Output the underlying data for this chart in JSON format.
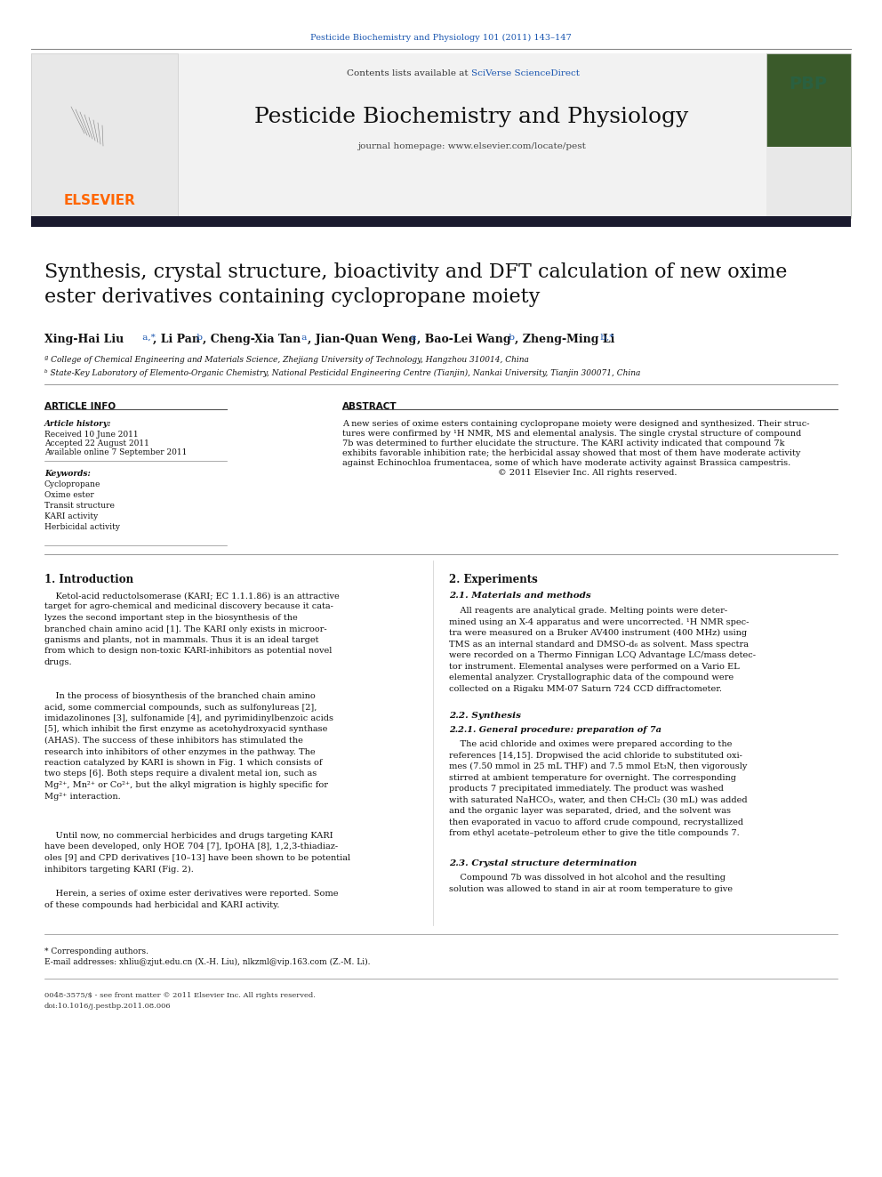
{
  "journal_header": "Pesticide Biochemistry and Physiology 101 (2011) 143–147",
  "journal_name": "Pesticide Biochemistry and Physiology",
  "journal_homepage": "journal homepage: www.elsevier.com/locate/pest",
  "contents_line": "Contents lists available at SciVerse ScienceDirect",
  "title": "Synthesis, crystal structure, bioactivity and DFT calculation of new oxime\nester derivatives containing cyclopropane moiety",
  "authors": "Xing-Hai Liu a,*, Li Pan b, Cheng-Xia Tan a, Jian-Quan Weng a, Bao-Lei Wang b, Zheng-Ming Li b,*",
  "affiliation_a": " a College of Chemical Engineering and Materials Science, Zhejiang University of Technology, Hangzhou 310014, China",
  "affiliation_b": " b State-Key Laboratory of Elemento-Organic Chemistry, National Pesticidal Engineering Centre (Tianjin), Nankai University, Tianjin 300071, China",
  "article_info_header": "ARTICLE INFO",
  "article_history_header": "Article history:",
  "received": "Received 10 June 2011",
  "accepted": "Accepted 22 August 2011",
  "available": "Available online 7 September 2011",
  "keywords_header": "Keywords:",
  "keywords": [
    "Cyclopropane",
    "Oxime ester",
    "Transit structure",
    "KARI activity",
    "Herbicidal activity"
  ],
  "abstract_header": "ABSTRACT",
  "abstract_text": "A new series of oxime esters containing cyclopropane moiety were designed and synthesized. Their structures were confirmed by ¹H NMR, MS and elemental analysis. The single crystal structure of compound 7b was determined to further elucidate the structure. The KARI activity indicated that compound 7k exhibits favorable inhibition rate; the herbicidal assay showed that most of them have moderate activity against Echinochloa frumentacea, some of which have moderate activity against Brassica campestris.\n© 2011 Elsevier Inc. All rights reserved.",
  "section1_header": "1. Introduction",
  "section1_para1": "Ketol-acid reductolsomerase (KARI; EC 1.1.1.86) is an attractive target for agro-chemical and medicinal discovery because it catalyzes the second important step in the biosynthesis of the branched chain amino acid [1]. The KARI only exists in microorganisms and plants, not in mammals. Thus it is an ideal target from which to design non-toxic KARI-inhibitors as potential novel drugs.",
  "section1_para2": "In the process of biosynthesis of the branched chain amino acid, some commercial compounds, such as sulfonylureas [2], imidazolinones [3], sulfonamide [4], and pyrimidinylbenzoic acids [5], which inhibit the first enzyme as acetohydroxyacid synthase (AHAS). The success of these inhibitors has stimulated the research into inhibitors of other enzymes in the pathway. The reaction catalyzed by KARI is shown in Fig. 1 which consists of two steps [6]. Both steps require a divalent metal ion, such as Mg²⁺, Mn²⁺ or Co²⁺, but the alkyl migration is highly specific for Mg²⁺ interaction.",
  "section1_para3": "Until now, no commercial herbicides and drugs targeting KARI have been developed, only HOE 704 [7], IpOHA [8], 1,2,3-thiadiazoles [9] and CPD derivatives [10–13] have been shown to be potential inhibitors targeting KARI (Fig. 2).",
  "section1_para4": "Herein, a series of oxime ester derivatives were reported. Some of these compounds had herbicidal and KARI activity.",
  "section2_header": "2. Experiments",
  "section2_1_header": "2.1. Materials and methods",
  "section2_1_text": "All reagents are analytical grade. Melting points were determined using an X-4 apparatus and were uncorrected. ¹H NMR spectra were measured on a Bruker AV400 instrument (400 MHz) using TMS as an internal standard and DMSO-d₆ as solvent. Mass spectra were recorded on a Thermo Finnigan LCQ Advantage LC/mass detector instrument. Elemental analyses were performed on a Vario EL elemental analyzer. Crystallographic data of the compound were collected on a Rigaku MM-07 Saturn 724 CCD diffractometer.",
  "section2_2_header": "2.2. Synthesis",
  "section2_2_1_header": "2.2.1. General procedure: preparation of 7a",
  "section2_2_1_text": "The acid chloride and oximes were prepared according to the references [14,15]. Dropwised the acid chloride to substituted oximes (7.50 mmol in 25 mL THF) and 7.5 mmol Et₃N, then vigorously stirred at ambient temperature for overnight. The corresponding products 7 precipitated immediately. The product was washed with saturated NaHCO₃, water, and then CH₂Cl₂ (30 mL) was added and the organic layer was separated, dried, and the solvent was then evaporated in vacuo to afford crude compound, recrystallized from ethyl acetate–petroleum ether to give the title compounds 7.",
  "section2_3_header": "2.3. Crystal structure determination",
  "section2_3_text": "Compound 7b was dissolved in hot alcohol and the resulting solution was allowed to stand in air at room temperature to give",
  "footnote_star": "* Corresponding authors.",
  "footnote_email": "E-mail addresses: xhliu@zjut.edu.cn (X.-H. Liu), nlkzml@vip.163.com (Z.-M. Li).",
  "issn_line": "0048-3575/$ - see front matter © 2011 Elsevier Inc. All rights reserved.",
  "doi_line": "doi:10.1016/j.pestbp.2011.08.006",
  "bg_color": "#ffffff",
  "header_bg": "#f0f0f0",
  "elsevier_orange": "#ff6600",
  "link_blue": "#1a56b0",
  "dark_bar_color": "#1a1a2e",
  "section_header_color": "#000000",
  "text_color": "#000000"
}
